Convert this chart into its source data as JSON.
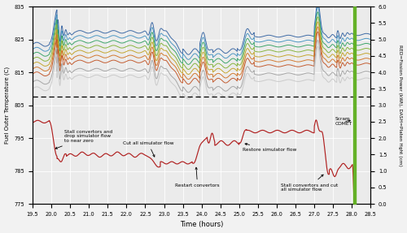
{
  "xlim": [
    19.5,
    28.5
  ],
  "ylim_left": [
    775,
    835
  ],
  "ylim_right": [
    0.0,
    6.0
  ],
  "xlabel": "Time (hours)",
  "ylabel_left": "Fuel Outer Temperature (C)",
  "ylabel_right": "RED=Fission Power (kWt), DASH=Platen Hght (cm)",
  "xticks": [
    19.5,
    20.0,
    20.5,
    21.0,
    21.5,
    22.0,
    22.5,
    23.0,
    23.5,
    24.0,
    24.5,
    25.0,
    25.5,
    26.0,
    26.5,
    27.0,
    27.5,
    28.0,
    28.5
  ],
  "yticks_left": [
    775,
    785,
    795,
    805,
    815,
    825,
    835
  ],
  "yticks_right": [
    0.0,
    0.5,
    1.0,
    1.5,
    2.0,
    2.5,
    3.0,
    3.5,
    4.0,
    4.5,
    5.0,
    5.5,
    6.0
  ],
  "dashed_line_y": 807.5,
  "temp_line_colors": [
    "#3060a0",
    "#4090c0",
    "#30a060",
    "#80b030",
    "#c0a020",
    "#d07020",
    "#c05020",
    "#a0a0a0",
    "#c8c8c8"
  ],
  "temp_line_offsets": [
    8.0,
    6.5,
    5.0,
    3.5,
    2.0,
    0.5,
    -1.0,
    -3.5,
    -5.5
  ],
  "power_line_color": "#b02020",
  "platen_bar_color": "#60b020",
  "background_color": "#ebebeb",
  "grid_color": "#ffffff"
}
